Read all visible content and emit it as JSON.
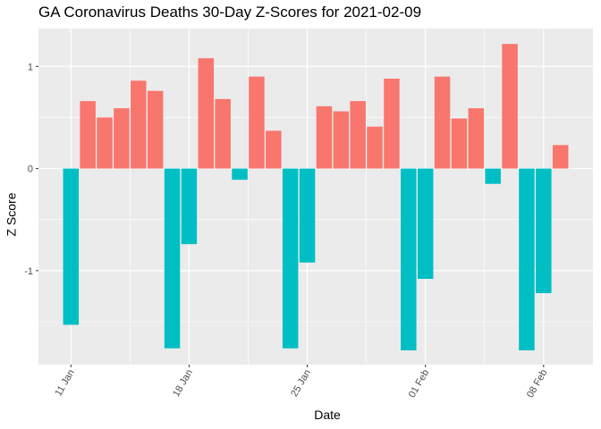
{
  "chart_data": {
    "type": "bar",
    "title": "GA Coronavirus Deaths 30-Day Z-Scores for 2021-02-09",
    "xlabel": "Date",
    "ylabel": "Z Score",
    "x_tick_labels": [
      "11 Jan",
      "18 Jan",
      "25 Jan",
      "01 Feb",
      "08 Feb"
    ],
    "y_tick_labels": [
      "-1",
      "0",
      "1"
    ],
    "ylim": [
      -1.92,
      1.37
    ],
    "grid": true,
    "legend": "none",
    "colors": {
      "positive": "#F8766D",
      "negative": "#00BFC4",
      "panel": "#EBEBEB",
      "grid": "#FFFFFF"
    },
    "categories": [
      "2021-01-11",
      "2021-01-12",
      "2021-01-13",
      "2021-01-14",
      "2021-01-15",
      "2021-01-16",
      "2021-01-17",
      "2021-01-18",
      "2021-01-19",
      "2021-01-20",
      "2021-01-21",
      "2021-01-22",
      "2021-01-23",
      "2021-01-24",
      "2021-01-25",
      "2021-01-26",
      "2021-01-27",
      "2021-01-28",
      "2021-01-29",
      "2021-01-30",
      "2021-01-31",
      "2021-02-01",
      "2021-02-02",
      "2021-02-03",
      "2021-02-04",
      "2021-02-05",
      "2021-02-06",
      "2021-02-07",
      "2021-02-08",
      "2021-02-09"
    ],
    "values": [
      -1.53,
      0.66,
      0.5,
      0.59,
      0.86,
      0.76,
      -1.76,
      -0.74,
      1.08,
      0.68,
      -0.11,
      0.9,
      0.37,
      -1.76,
      -0.92,
      0.61,
      0.56,
      0.66,
      0.41,
      0.88,
      -1.78,
      -1.08,
      0.9,
      0.49,
      0.59,
      -0.15,
      1.22,
      -1.78,
      -1.22,
      0.23
    ]
  }
}
